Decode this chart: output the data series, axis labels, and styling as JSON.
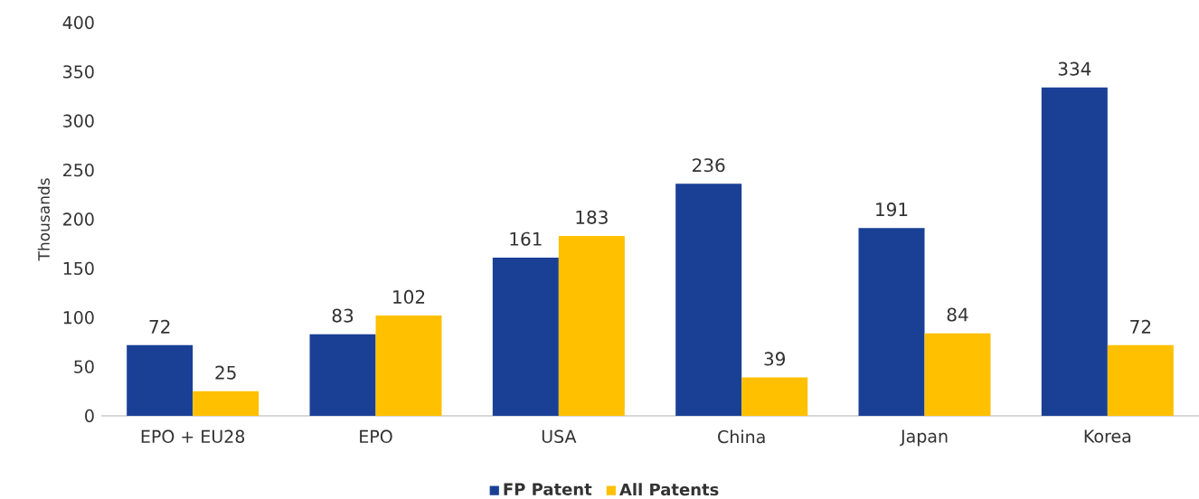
{
  "chart_data": {
    "type": "bar",
    "ylabel": "Thousands",
    "categories": [
      "EPO + EU28",
      "EPO",
      "USA",
      "China",
      "Japan",
      "Korea"
    ],
    "series": [
      {
        "name": "FP Patent",
        "color": "#1a4096",
        "values": [
          72,
          83,
          161,
          236,
          191,
          334
        ]
      },
      {
        "name": "All Patents",
        "color": "#ffc000",
        "values": [
          25,
          102,
          183,
          39,
          84,
          72
        ]
      }
    ],
    "ylim": [
      0,
      400
    ],
    "yticks": [
      0,
      50,
      100,
      150,
      200,
      250,
      300,
      350,
      400
    ],
    "data_labels": true,
    "legend": "bottom",
    "grid": false
  }
}
